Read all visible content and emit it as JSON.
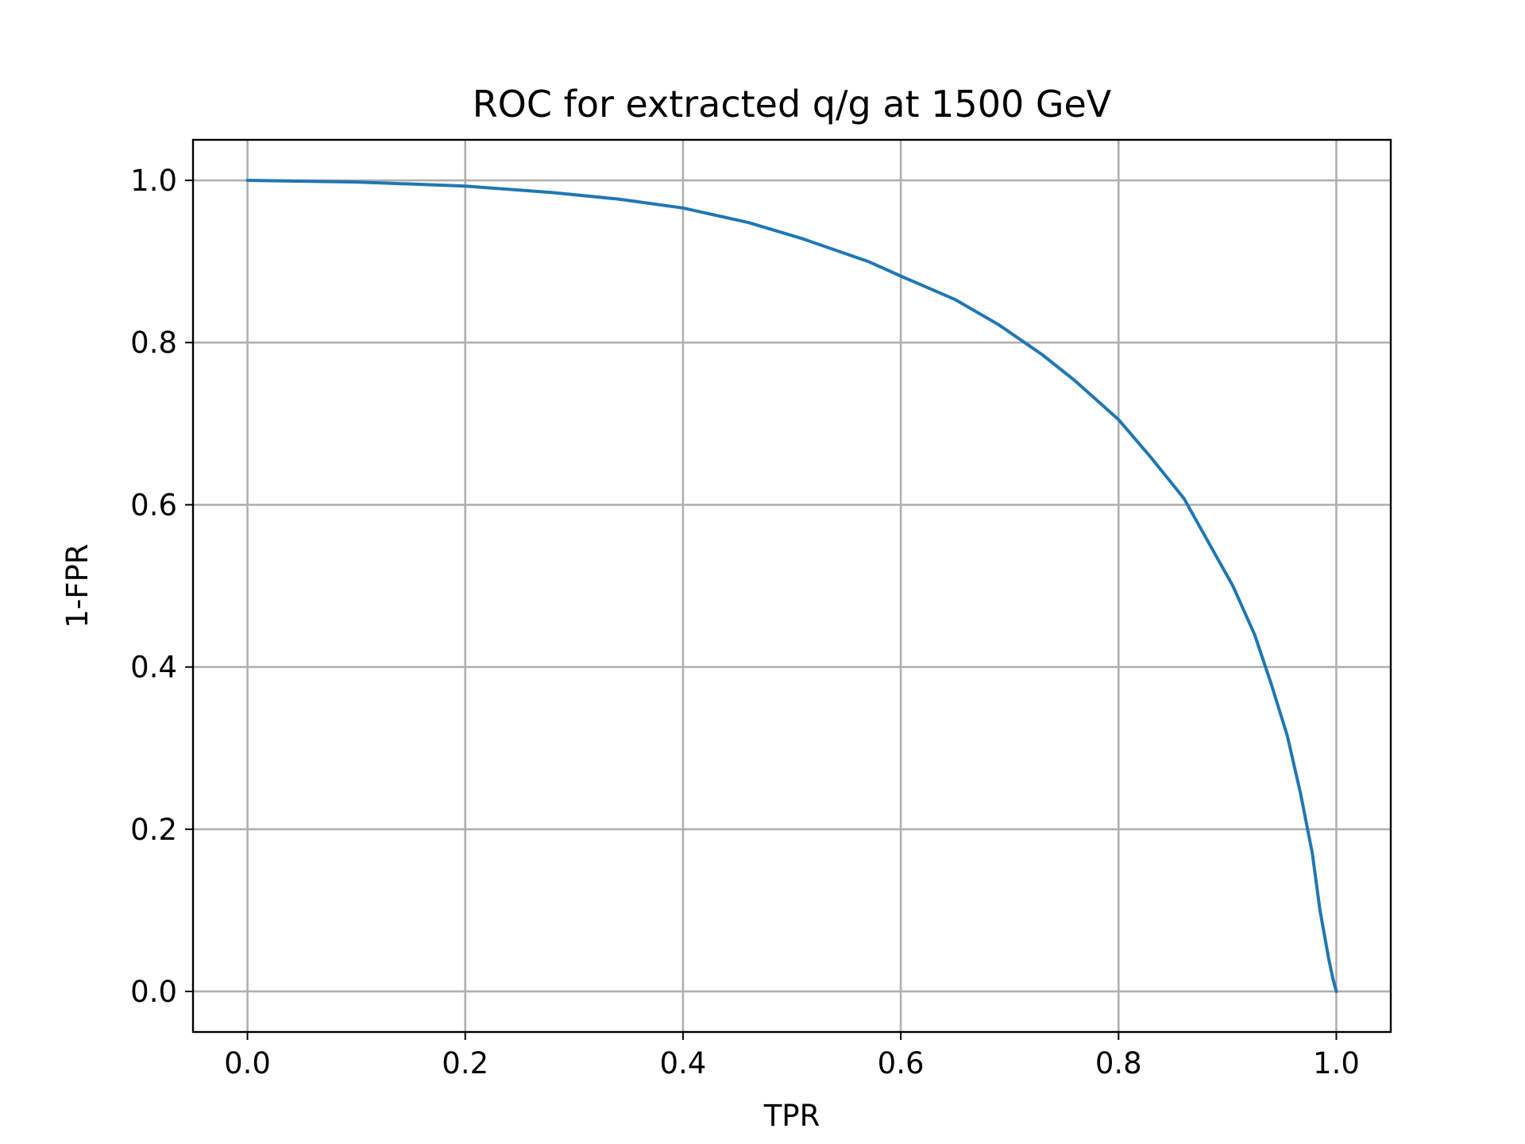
{
  "chart_data": {
    "type": "line",
    "title": "ROC for extracted q/g at 1500 GeV",
    "xlabel": "TPR",
    "ylabel": "1-FPR",
    "xlim": [
      -0.05,
      1.05
    ],
    "ylim": [
      -0.05,
      1.05
    ],
    "xticks": [
      0.0,
      0.2,
      0.4,
      0.6,
      0.8,
      1.0
    ],
    "xtick_labels": [
      "0.0",
      "0.2",
      "0.4",
      "0.6",
      "0.8",
      "1.0"
    ],
    "yticks": [
      0.0,
      0.2,
      0.4,
      0.6,
      0.8,
      1.0
    ],
    "ytick_labels": [
      "0.0",
      "0.2",
      "0.4",
      "0.6",
      "0.8",
      "1.0"
    ],
    "grid": true,
    "series": [
      {
        "color": "#1f77b4",
        "x": [
          0.0,
          0.1,
          0.2,
          0.28,
          0.34,
          0.4,
          0.46,
          0.51,
          0.57,
          0.6,
          0.65,
          0.69,
          0.73,
          0.76,
          0.8,
          0.83,
          0.86,
          0.88,
          0.905,
          0.925,
          0.94,
          0.955,
          0.967,
          0.978,
          0.985,
          0.993,
          0.997,
          1.0
        ],
        "y": [
          1.0,
          0.998,
          0.993,
          0.985,
          0.977,
          0.966,
          0.948,
          0.928,
          0.9,
          0.882,
          0.853,
          0.822,
          0.785,
          0.753,
          0.705,
          0.658,
          0.608,
          0.56,
          0.5,
          0.44,
          0.38,
          0.315,
          0.245,
          0.17,
          0.1,
          0.04,
          0.015,
          0.0
        ]
      }
    ]
  }
}
